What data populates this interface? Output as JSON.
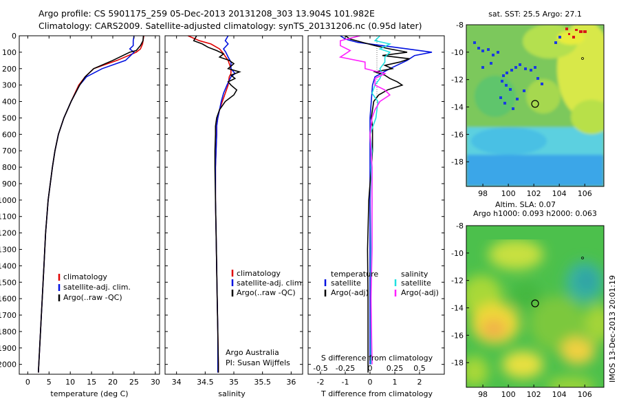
{
  "header": {
    "line1": "Argo profile: CS 5901175_259 05-Dec-2013 20131208_303 13.904S 101.982E",
    "line2": "Climatology: CARS2009. Satellite-adjusted climatology: synTS_20131206.nc (0.95d later)"
  },
  "colors": {
    "climatology": "#e00000",
    "satellite": "#0010e0",
    "argo": "#000000",
    "satellite_s": "#20e0e0",
    "argo_s": "#ff20ff"
  },
  "chart_data": [
    {
      "type": "line",
      "name": "temperature",
      "xlabel": "temperature (deg C)",
      "xlim": [
        -2,
        31
      ],
      "ylim": [
        2060,
        0
      ],
      "xticks": [
        "0",
        "5",
        "10",
        "15",
        "20",
        "25",
        "30"
      ],
      "yticks": [
        "0",
        "100",
        "200",
        "300",
        "400",
        "500",
        "600",
        "700",
        "800",
        "900",
        "1000",
        "1100",
        "1200",
        "1300",
        "1400",
        "1500",
        "1600",
        "1700",
        "1800",
        "1900",
        "2000"
      ],
      "legend": [
        "climatology",
        "satellite-adj. clim.",
        "Argo(..raw -QC)"
      ],
      "series": [
        {
          "name": "climatology",
          "depth": [
            0,
            50,
            80,
            100,
            150,
            200,
            250,
            300,
            400,
            500,
            600,
            700,
            800,
            1000,
            1200,
            1400,
            1600,
            1800,
            2000,
            2050
          ],
          "values": [
            27.3,
            27,
            26.5,
            25.5,
            21,
            15.5,
            13.5,
            12,
            10.2,
            8.5,
            7.2,
            6.4,
            5.8,
            4.8,
            4.2,
            3.8,
            3.4,
            3,
            2.6,
            2.5
          ]
        },
        {
          "name": "satellite-adj. clim.",
          "depth": [
            0,
            30,
            60,
            80,
            100,
            150,
            200,
            250,
            300,
            400,
            500,
            600,
            700,
            800,
            1000,
            1200,
            1400,
            1600,
            1800,
            2000,
            2050
          ],
          "values": [
            25,
            24.8,
            24.8,
            24,
            25,
            23,
            17.5,
            13.8,
            12.2,
            10.2,
            8.5,
            7.2,
            6.4,
            5.8,
            4.8,
            4.2,
            3.8,
            3.4,
            3,
            2.6,
            2.5
          ]
        },
        {
          "name": "Argo(..raw -QC)",
          "depth": [
            0,
            30,
            60,
            90,
            100,
            150,
            200,
            250,
            300,
            400,
            500,
            600,
            700,
            800,
            1000,
            1200,
            1400,
            1600,
            1800,
            2000,
            2050
          ],
          "values": [
            27.2,
            27.1,
            26.5,
            25.5,
            24,
            20,
            15.5,
            13.5,
            12.2,
            10.2,
            8.5,
            7.2,
            6.4,
            5.8,
            4.8,
            4.2,
            3.8,
            3.4,
            3,
            2.6,
            2.5
          ]
        }
      ]
    },
    {
      "type": "line",
      "name": "salinity",
      "xlabel": "salinity",
      "xlim": [
        33.8,
        36.2
      ],
      "ylim": [
        2060,
        0
      ],
      "xticks": [
        "34",
        "34.5",
        "35",
        "35.5",
        "36"
      ],
      "legend": [
        "climatology",
        "satellite-adj. clim.",
        "Argo(..raw -QC)"
      ],
      "annotation": [
        "Argo Australia",
        "PI: Susan Wijffels"
      ],
      "series": [
        {
          "name": "climatology",
          "depth": [
            0,
            30,
            50,
            80,
            100,
            150,
            200,
            230,
            250,
            300,
            350,
            400,
            450,
            500,
            550,
            600,
            800,
            1000,
            1200,
            1400,
            1600,
            1800,
            2000,
            2050
          ],
          "values": [
            34.2,
            34.4,
            34.6,
            34.75,
            34.8,
            34.9,
            34.95,
            34.95,
            34.92,
            34.9,
            34.85,
            34.8,
            34.75,
            34.72,
            34.7,
            34.7,
            34.68,
            34.68,
            34.69,
            34.7,
            34.71,
            34.72,
            34.73,
            34.73
          ]
        },
        {
          "name": "satellite-adj. clim.",
          "depth": [
            0,
            30,
            50,
            80,
            100,
            130,
            160,
            200,
            230,
            250,
            300,
            350,
            400,
            450,
            500,
            550,
            600,
            800,
            1000,
            1200,
            1400,
            1600,
            1800,
            2000,
            2050
          ],
          "values": [
            34.9,
            34.85,
            34.9,
            34.82,
            34.86,
            34.9,
            34.95,
            34.95,
            35.02,
            34.95,
            34.88,
            34.82,
            34.78,
            34.75,
            34.72,
            34.7,
            34.7,
            34.68,
            34.68,
            34.69,
            34.7,
            34.71,
            34.72,
            34.72,
            34.72
          ]
        },
        {
          "name": "Argo(..raw -QC)",
          "depth": [
            0,
            30,
            50,
            70,
            90,
            110,
            130,
            150,
            170,
            200,
            220,
            240,
            260,
            280,
            300,
            330,
            360,
            400,
            450,
            500,
            550,
            600,
            700,
            800,
            1000,
            1200,
            1400,
            1600,
            1800,
            2000,
            2050
          ],
          "values": [
            34.35,
            34.3,
            34.45,
            34.55,
            34.7,
            34.82,
            34.75,
            34.92,
            35,
            34.9,
            35.1,
            34.95,
            35.02,
            34.9,
            34.95,
            35.05,
            35,
            34.85,
            34.75,
            34.7,
            34.68,
            34.68,
            34.67,
            34.67,
            34.68,
            34.69,
            34.7,
            34.71,
            34.72,
            34.73,
            34.73
          ]
        }
      ]
    },
    {
      "type": "line",
      "name": "differences",
      "xlabel": "T difference from climatology",
      "xlabel_top": "S difference from climatology",
      "xlim": [
        -2.5,
        3
      ],
      "ylim": [
        2060,
        0
      ],
      "xticks": [
        "-2",
        "-1",
        "0",
        "1",
        "2"
      ],
      "xticks_s": [
        "-0.5",
        "-0.25",
        "0",
        "0.25",
        "0.5"
      ],
      "legend_headers": [
        "temperature",
        "salinity"
      ],
      "legend": [
        "satellite",
        "Argo(-adj)",
        "satellite",
        "Argo(-adj)"
      ],
      "series": [
        {
          "name": "T satellite",
          "depth": [
            0,
            20,
            40,
            60,
            80,
            100,
            120,
            150,
            200,
            250,
            300,
            400,
            500,
            600,
            800,
            1000,
            1500,
            2000
          ],
          "values": [
            -1.2,
            -1.0,
            -0.5,
            0.5,
            1.5,
            2.5,
            1.8,
            1.5,
            0.8,
            0.2,
            0.1,
            0.05,
            0,
            0,
            0,
            0,
            0,
            0
          ]
        },
        {
          "name": "T Argo(-adj)",
          "depth": [
            0,
            20,
            40,
            60,
            80,
            100,
            120,
            140,
            160,
            180,
            200,
            220,
            240,
            260,
            280,
            300,
            330,
            360,
            400,
            450,
            500,
            550,
            600,
            700,
            800,
            1000,
            1300,
            1600,
            1900,
            2050
          ],
          "values": [
            -1.0,
            -0.8,
            -0.3,
            0.2,
            0.8,
            1.5,
            0.5,
            1.6,
            1.2,
            0.6,
            0.9,
            0.2,
            0.6,
            0.8,
            1.1,
            1.3,
            0.7,
            0.35,
            0.15,
            0.1,
            0.05,
            0.1,
            0.1,
            0.1,
            0.05,
            -0.05,
            -0.1,
            -0.08,
            -0.08,
            -0.08
          ]
        },
        {
          "name": "S satellite",
          "depth": [
            0,
            30,
            50,
            80,
            100,
            130,
            160,
            200,
            230,
            260,
            300,
            350,
            400,
            500,
            600,
            700,
            800,
            1000,
            1400,
            1800,
            2000
          ],
          "values": [
            0.1,
            0.05,
            0.2,
            0.1,
            0.2,
            0.15,
            0.15,
            0.1,
            0.12,
            0.1,
            0.05,
            0.02,
            0.08,
            0.06,
            0,
            0.02,
            0.01,
            0.02,
            0.01,
            0.01,
            0.01
          ]
        },
        {
          "name": "S Argo(-adj)",
          "depth": [
            0,
            30,
            60,
            90,
            110,
            130,
            160,
            200,
            230,
            260,
            300,
            330,
            360,
            400,
            450,
            500,
            550,
            600,
            700,
            800,
            1000,
            1300,
            1600,
            2000
          ],
          "values": [
            -0.1,
            -0.3,
            -0.3,
            -0.2,
            -0.25,
            -0.3,
            -0.05,
            -0.05,
            0.15,
            0.05,
            0.05,
            0.15,
            0.2,
            0.1,
            0.05,
            0.02,
            0.01,
            0,
            0.01,
            0.02,
            0.02,
            0.02,
            0.01,
            0.02
          ]
        }
      ]
    },
    {
      "type": "heatmap",
      "name": "sst_map",
      "title": "sat. SST: 25.5  Argo: 27.1",
      "xlim": [
        96.7,
        107.5
      ],
      "ylim": [
        -19.8,
        -8
      ],
      "xticks": [
        "98",
        "100",
        "102",
        "104",
        "106"
      ],
      "yticks": [
        "-8",
        "-10",
        "-12",
        "-14",
        "-16",
        "-18"
      ],
      "marker": {
        "lon": 101.982,
        "lat": -13.904
      }
    },
    {
      "type": "heatmap",
      "name": "sla_map",
      "title_lines": [
        "Altim. SLA: 0.07",
        "Argo h1000: 0.093  h2000: 0.063"
      ],
      "xlim": [
        96.7,
        107.5
      ],
      "ylim": [
        -19.8,
        -8
      ],
      "xticks": [
        "98",
        "100",
        "102",
        "104",
        "106"
      ],
      "yticks": [
        "-8",
        "-10",
        "-12",
        "-14",
        "-16",
        "-18"
      ],
      "marker": {
        "lon": 101.982,
        "lat": -13.904
      }
    }
  ],
  "footer": {
    "stamp": "IMOS 13-Dec-2013 20:01:19"
  }
}
